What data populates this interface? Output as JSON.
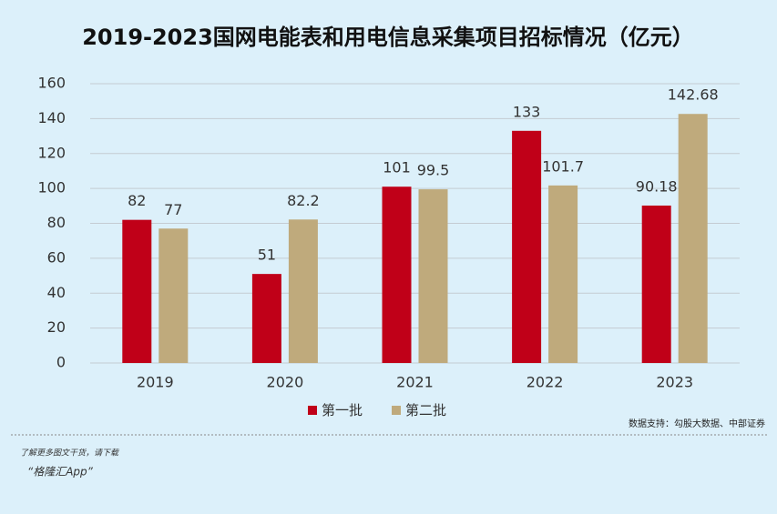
{
  "chart_data": {
    "type": "bar",
    "title": "2019-2023国网电能表和用电信息采集项目招标情况（亿元）",
    "categories": [
      "2019",
      "2020",
      "2021",
      "2022",
      "2023"
    ],
    "series": [
      {
        "name": "第一批",
        "color": "#c00018",
        "values": [
          82,
          51,
          101,
          133,
          90.18
        ]
      },
      {
        "name": "第二批",
        "color": "#bfaa7c",
        "values": [
          77,
          82.2,
          99.5,
          101.7,
          142.68
        ]
      }
    ],
    "ylim": [
      0,
      160
    ],
    "yticks": [
      0,
      20,
      40,
      60,
      80,
      100,
      120,
      140,
      160
    ],
    "grid": true,
    "legend": "bottom",
    "source": "数据支持：勾股大数据、中部证券"
  },
  "footer": {
    "line1": "了解更多图文干货，请下载",
    "line2": "“格隆汇App”"
  }
}
